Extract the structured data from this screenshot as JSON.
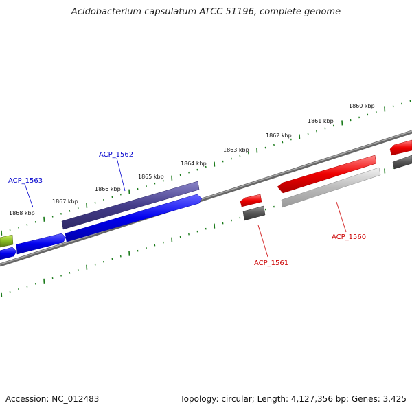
{
  "title": "Acidobacterium capsulatum ATCC 51196, complete genome",
  "footer": {
    "accession": "Accession: NC_012483",
    "stats": "Topology: circular; Length: 4,127,356 bp; Genes: 3,425"
  },
  "scale": {
    "ticks": [
      "1860 kbp",
      "1861 kbp",
      "1862 kbp",
      "1863 kbp",
      "1864 kbp",
      "1865 kbp",
      "1866 kbp",
      "1867 kbp",
      "1868 kbp"
    ]
  },
  "genes": [
    {
      "label": "ACP_1563",
      "color": "#0000cc"
    },
    {
      "label": "ACP_1562",
      "color": "#0000cc"
    },
    {
      "label": "ACP_1561",
      "color": "#cc0000"
    },
    {
      "label": "ACP_1560",
      "color": "#cc0000"
    }
  ],
  "colors": {
    "forward_cds": "#1a1aff",
    "forward_shadow": "#4a4590",
    "reverse_cds": "#ff1a1a",
    "reverse_shadow": "#555555",
    "backbone": "#888888",
    "tick": "#1a7a1a",
    "yellowgreen": "#99cc33"
  }
}
